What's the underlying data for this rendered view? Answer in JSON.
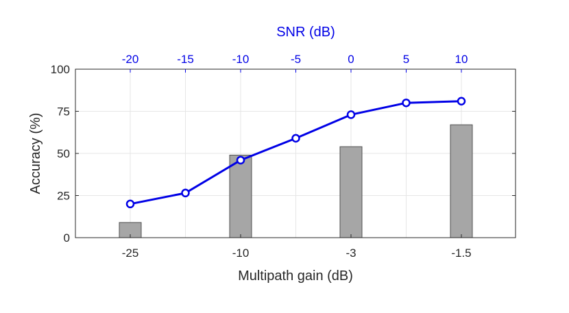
{
  "chart_data": {
    "type": "bar",
    "xlabel": "Multipath gain (dB)",
    "ylabel": "Accuracy (%)",
    "top_xlabel": "SNR (dB)",
    "ylim": [
      0,
      100
    ],
    "yticks": [
      0,
      25,
      50,
      75,
      100
    ],
    "grid": true,
    "colors": {
      "line": "#0000e6",
      "bar_fill": "#a6a6a6",
      "bar_edge": "#505050",
      "axis": "#262626",
      "grid": "#e6e6e6"
    },
    "bars": {
      "categories": [
        "-25",
        "-10",
        "-3",
        "-1.5"
      ],
      "values": [
        9,
        49,
        54,
        67
      ]
    },
    "line": {
      "x_ticks": [
        "-20",
        "-15",
        "-10",
        "-5",
        "0",
        "5",
        "10"
      ],
      "values": [
        20,
        26.5,
        46,
        59,
        73,
        80,
        81
      ]
    }
  }
}
